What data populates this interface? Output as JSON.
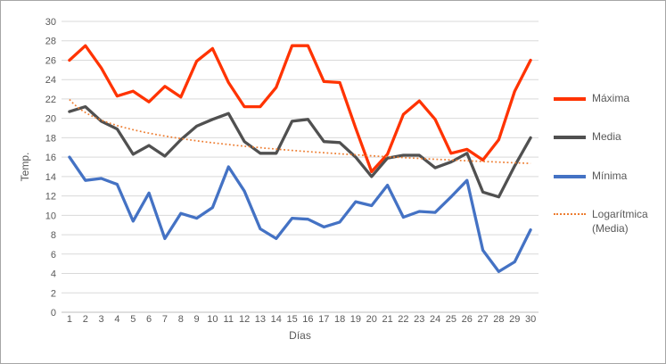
{
  "chart_data": {
    "type": "line",
    "title": "",
    "xlabel": "Días",
    "ylabel": "Temp.",
    "x": [
      1,
      2,
      3,
      4,
      5,
      6,
      7,
      8,
      9,
      10,
      11,
      12,
      13,
      14,
      15,
      16,
      17,
      18,
      19,
      20,
      21,
      22,
      23,
      24,
      25,
      26,
      27,
      28,
      29,
      30
    ],
    "y_ticks": [
      0,
      2,
      4,
      6,
      8,
      10,
      12,
      14,
      16,
      18,
      20,
      22,
      24,
      26,
      28,
      30
    ],
    "ylim": [
      0,
      30
    ],
    "grid": true,
    "legend_position": "right",
    "series": [
      {
        "id": "maxima",
        "name": "Máxima",
        "color": "#ff3300",
        "style": "solid",
        "values": [
          26.0,
          27.5,
          25.2,
          22.3,
          22.8,
          21.7,
          23.3,
          22.2,
          25.9,
          27.2,
          23.7,
          21.2,
          21.2,
          23.2,
          27.5,
          27.5,
          23.8,
          23.7,
          19.0,
          14.5,
          16.3,
          20.4,
          21.8,
          19.9,
          16.4,
          16.8,
          15.7,
          17.8,
          22.8,
          26.0
        ]
      },
      {
        "id": "media",
        "name": "Media",
        "color": "#505050",
        "style": "solid",
        "values": [
          20.7,
          21.2,
          19.7,
          18.9,
          16.3,
          17.2,
          16.1,
          17.8,
          19.2,
          19.9,
          20.5,
          17.6,
          16.4,
          16.4,
          19.7,
          19.9,
          17.6,
          17.5,
          16.0,
          14.0,
          15.9,
          16.2,
          16.2,
          14.9,
          15.5,
          16.4,
          12.4,
          11.9,
          15.1,
          18.0
        ]
      },
      {
        "id": "minima",
        "name": "Mínima",
        "color": "#4472c4",
        "style": "solid",
        "values": [
          16.0,
          13.6,
          13.8,
          13.2,
          9.4,
          12.3,
          7.6,
          10.2,
          9.7,
          10.8,
          15.0,
          12.5,
          8.6,
          7.6,
          9.7,
          9.6,
          8.8,
          9.3,
          11.4,
          11.0,
          13.1,
          9.8,
          10.4,
          10.3,
          11.9,
          13.6,
          6.4,
          4.2,
          5.2,
          8.5
        ]
      },
      {
        "id": "trend-media",
        "name": "Logarítmica (Media)",
        "color": "#ed7d31",
        "style": "dotted",
        "trend": {
          "kind": "logarithmic",
          "a": 21.95,
          "b": -1.94,
          "formula": "y = 21.95 - 1.94·ln(x)"
        }
      }
    ],
    "colors": {
      "gridline": "#d9d9d9",
      "axis_line": "#bfbfbf",
      "tick_label": "#595959",
      "axis_title": "#595959"
    }
  }
}
